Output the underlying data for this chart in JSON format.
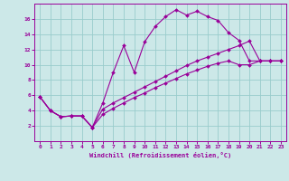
{
  "xlabel": "Windchill (Refroidissement éolien,°C)",
  "bg_color": "#cce8e8",
  "line_color": "#990099",
  "grid_color": "#99cccc",
  "xlim": [
    -0.5,
    23.5
  ],
  "ylim": [
    0,
    18
  ],
  "xticks": [
    0,
    1,
    2,
    3,
    4,
    5,
    6,
    7,
    8,
    9,
    10,
    11,
    12,
    13,
    14,
    15,
    16,
    17,
    18,
    19,
    20,
    21,
    22,
    23
  ],
  "yticks": [
    2,
    4,
    6,
    8,
    10,
    12,
    14,
    16
  ],
  "curve1_x": [
    0,
    1,
    2,
    3,
    4,
    5,
    6,
    7,
    8,
    9,
    10,
    11,
    12,
    13,
    14,
    15,
    16,
    17,
    18,
    19,
    20,
    21,
    22,
    23
  ],
  "curve1_y": [
    5.8,
    4.0,
    3.2,
    3.3,
    3.3,
    1.8,
    5.0,
    9.0,
    12.5,
    9.0,
    13.0,
    15.0,
    16.3,
    17.2,
    16.5,
    17.0,
    16.3,
    15.8,
    14.2,
    13.2,
    10.5,
    10.5,
    10.5,
    10.5
  ],
  "curve2_x": [
    0,
    1,
    2,
    3,
    4,
    5,
    6,
    7,
    8,
    9,
    10,
    11,
    12,
    13,
    14,
    15,
    16,
    17,
    18,
    19,
    20,
    21,
    22,
    23
  ],
  "curve2_y": [
    5.8,
    4.0,
    3.2,
    3.3,
    3.3,
    1.8,
    4.2,
    5.0,
    5.7,
    6.4,
    7.1,
    7.8,
    8.5,
    9.2,
    9.9,
    10.5,
    11.0,
    11.5,
    12.0,
    12.5,
    13.1,
    10.5,
    10.5,
    10.5
  ],
  "curve3_x": [
    0,
    1,
    2,
    3,
    4,
    5,
    6,
    7,
    8,
    9,
    10,
    11,
    12,
    13,
    14,
    15,
    16,
    17,
    18,
    19,
    20,
    21,
    22,
    23
  ],
  "curve3_y": [
    5.8,
    4.0,
    3.2,
    3.3,
    3.3,
    1.8,
    3.5,
    4.3,
    5.0,
    5.7,
    6.3,
    7.0,
    7.6,
    8.2,
    8.8,
    9.3,
    9.8,
    10.2,
    10.5,
    10.0,
    10.0,
    10.5,
    10.5,
    10.5
  ]
}
